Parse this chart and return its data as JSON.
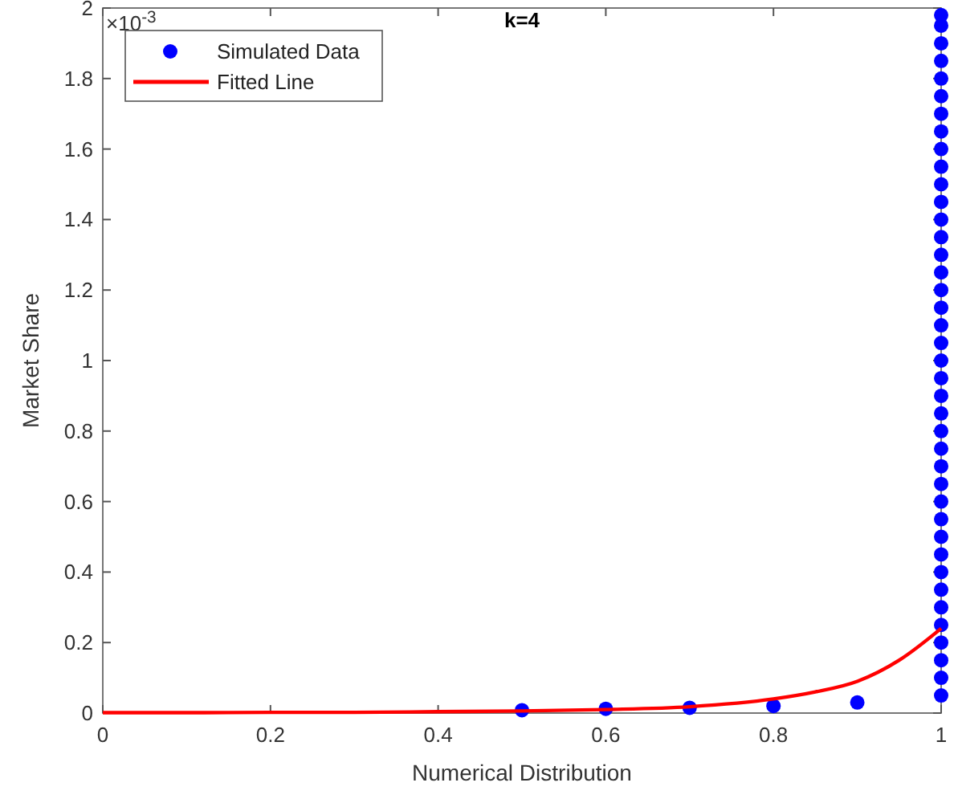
{
  "chart_data": {
    "type": "scatter",
    "title": "k=4",
    "xlabel": "Numerical Distribution",
    "ylabel": "Market Share",
    "annotations": [
      "×10$^{-3}$"
    ],
    "xlim": [
      0,
      1
    ],
    "ylim": [
      0,
      2
    ],
    "xticks": [
      0,
      0.2,
      0.4,
      0.6,
      0.8,
      1
    ],
    "yticks": [
      0,
      0.2,
      0.4,
      0.6,
      0.8,
      1,
      1.2,
      1.4,
      1.6,
      1.8,
      2
    ],
    "grid": false,
    "legend": "top left",
    "series": [
      {
        "name": "Simulated Data",
        "marker": "circle",
        "color": "#0000ff",
        "x": [
          0.5,
          0.6,
          0.7,
          0.8,
          0.9,
          1,
          1,
          1,
          1,
          1,
          1,
          1,
          1,
          1,
          1,
          1,
          1,
          1,
          1,
          1,
          1,
          1,
          1,
          1,
          1,
          1,
          1,
          1,
          1,
          1,
          1,
          1,
          1,
          1,
          1,
          1,
          1,
          1,
          1,
          1,
          1,
          1,
          1,
          1,
          1
        ],
        "values": [
          0.008,
          0.012,
          0.015,
          0.02,
          0.03,
          0.05,
          0.1,
          0.15,
          0.2,
          0.25,
          0.3,
          0.35,
          0.4,
          0.45,
          0.5,
          0.55,
          0.6,
          0.65,
          0.7,
          0.75,
          0.8,
          0.85,
          0.9,
          0.95,
          1,
          1.05,
          1.1,
          1.15,
          1.2,
          1.25,
          1.3,
          1.35,
          1.4,
          1.45,
          1.5,
          1.55,
          1.6,
          1.65,
          1.7,
          1.75,
          1.8,
          1.85,
          1.9,
          1.95,
          1.98
        ]
      },
      {
        "name": "Fitted Line",
        "type": "line",
        "line_style": "solid",
        "marker": "none",
        "color": "#ff0000",
        "x": [
          0,
          0.1,
          0.2,
          0.3,
          0.4,
          0.5,
          0.6,
          0.7,
          0.8,
          0.85,
          0.9,
          0.95,
          1
        ],
        "values": [
          0.001,
          0.001,
          0.002,
          0.002,
          0.004,
          0.006,
          0.01,
          0.018,
          0.04,
          0.06,
          0.09,
          0.15,
          0.24
        ]
      }
    ]
  }
}
